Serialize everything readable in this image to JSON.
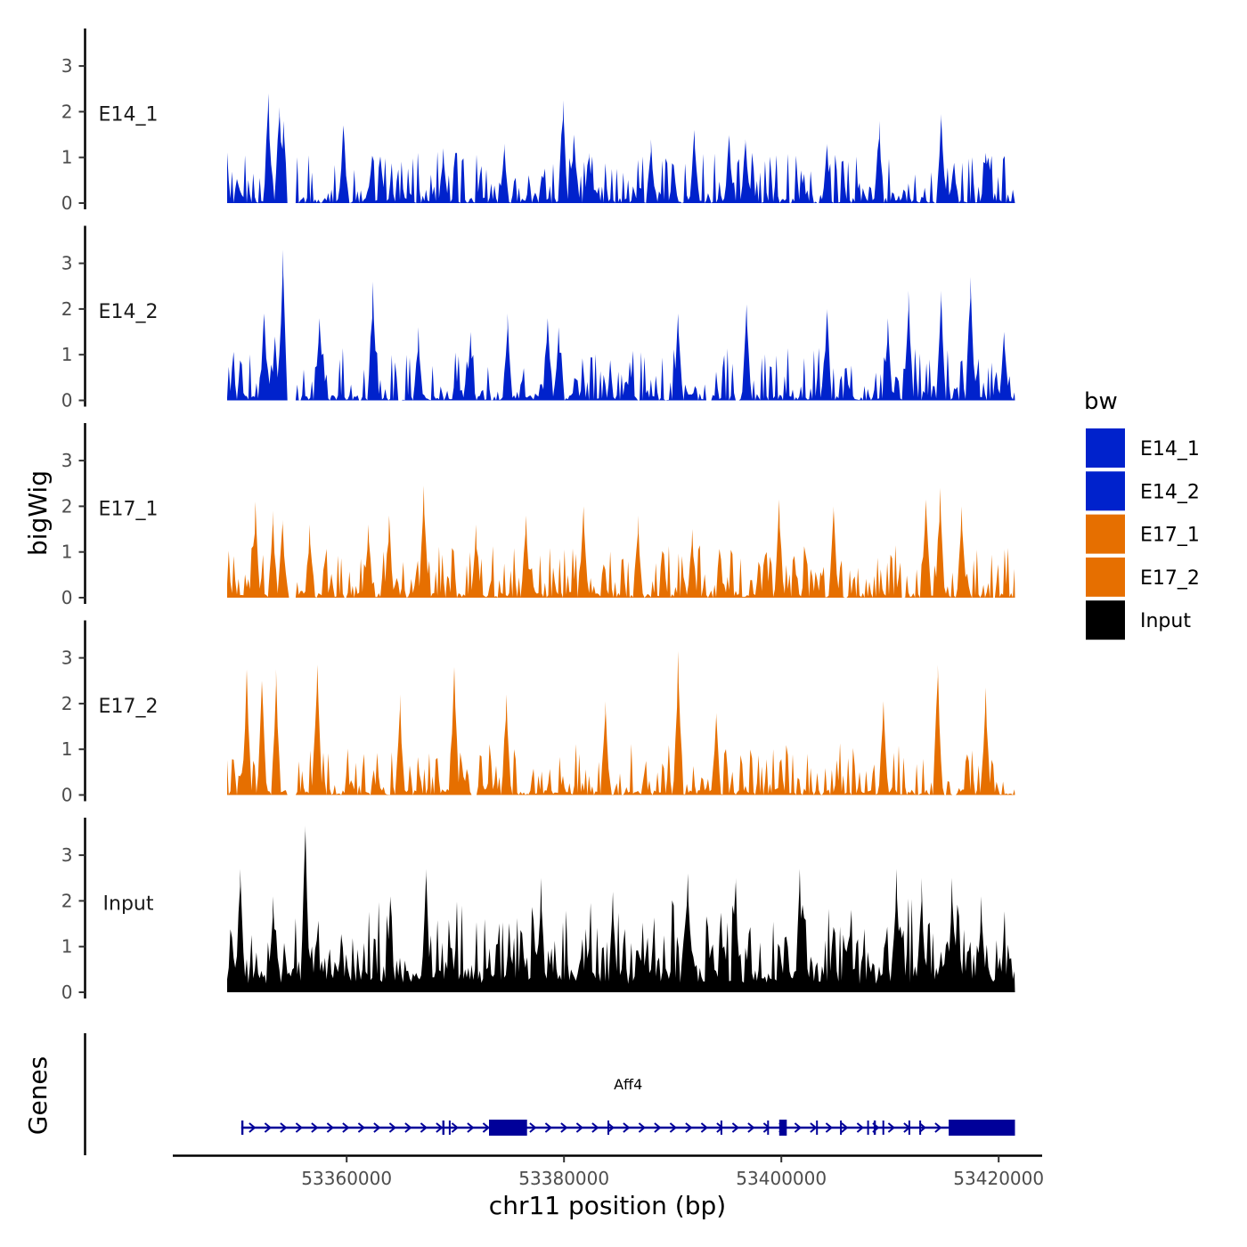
{
  "chart_data": {
    "type": "area",
    "xlabel": "chr11 position (bp)",
    "ylabel": "bigWig",
    "genes_label": "Genes",
    "chromosome": "chr11",
    "xlim": [
      53344000,
      53424000
    ],
    "data_range": [
      53349000,
      53421500
    ],
    "x_ticks": [
      {
        "value": 53360000,
        "label": "53360000"
      },
      {
        "value": 53380000,
        "label": "53380000"
      },
      {
        "value": 53400000,
        "label": "53400000"
      },
      {
        "value": 53420000,
        "label": "53420000"
      }
    ],
    "ylim": [
      0,
      3.8
    ],
    "y_ticks": [
      {
        "value": 0,
        "label": "0"
      },
      {
        "value": 1,
        "label": "1"
      },
      {
        "value": 2,
        "label": "2"
      },
      {
        "value": 3,
        "label": "3"
      }
    ],
    "tracks": [
      {
        "name": "E14_1",
        "color": "#0022cc",
        "max": 2.4,
        "peaks": [
          [
            53352800,
            2.4
          ],
          [
            53353800,
            2.1
          ],
          [
            53354200,
            1.8
          ],
          [
            53359700,
            1.7
          ],
          [
            53368900,
            1.2
          ],
          [
            53374500,
            1.3
          ],
          [
            53379900,
            2.25
          ],
          [
            53380900,
            1.5
          ],
          [
            53382300,
            1.1
          ],
          [
            53388000,
            1.4
          ],
          [
            53392000,
            1.6
          ],
          [
            53395200,
            1.5
          ],
          [
            53396700,
            1.4
          ],
          [
            53404200,
            1.3
          ],
          [
            53409000,
            1.8
          ],
          [
            53414700,
            1.95
          ],
          [
            53418800,
            1.1
          ]
        ],
        "gaps": [
          [
            53354500,
            53355300
          ],
          [
            53403200,
            53403500
          ]
        ]
      },
      {
        "name": "E14_2",
        "color": "#0022cc",
        "max": 3.3,
        "peaks": [
          [
            53352400,
            1.9
          ],
          [
            53353400,
            1.4
          ],
          [
            53354100,
            3.3
          ],
          [
            53357500,
            1.8
          ],
          [
            53362400,
            2.6
          ],
          [
            53366600,
            1.6
          ],
          [
            53371400,
            1.5
          ],
          [
            53374800,
            1.9
          ],
          [
            53378500,
            1.8
          ],
          [
            53379500,
            1.6
          ],
          [
            53390500,
            1.9
          ],
          [
            53396800,
            2.1
          ],
          [
            53404200,
            2.0
          ],
          [
            53409800,
            1.8
          ],
          [
            53411700,
            2.4
          ],
          [
            53414700,
            2.4
          ],
          [
            53417400,
            2.7
          ],
          [
            53420500,
            1.5
          ]
        ],
        "gaps": [
          [
            53354500,
            53355400
          ],
          [
            53393000,
            53393600
          ],
          [
            53395800,
            53396100
          ]
        ]
      },
      {
        "name": "E17_1",
        "color": "#e66f00",
        "max": 2.45,
        "peaks": [
          [
            53351600,
            2.1
          ],
          [
            53353200,
            1.9
          ],
          [
            53354100,
            1.7
          ],
          [
            53356600,
            1.6
          ],
          [
            53362000,
            1.6
          ],
          [
            53363900,
            1.8
          ],
          [
            53367100,
            2.45
          ],
          [
            53371900,
            1.6
          ],
          [
            53376500,
            1.8
          ],
          [
            53381800,
            2.0
          ],
          [
            53386800,
            1.8
          ],
          [
            53391800,
            1.5
          ],
          [
            53399800,
            2.15
          ],
          [
            53404800,
            2.0
          ],
          [
            53413300,
            2.15
          ],
          [
            53414600,
            2.4
          ],
          [
            53416600,
            2.0
          ]
        ],
        "gaps": [
          [
            53354700,
            53355400
          ],
          [
            53405800,
            53406100
          ],
          [
            53411000,
            53411300
          ]
        ]
      },
      {
        "name": "E17_2",
        "color": "#e66f00",
        "max": 3.15,
        "peaks": [
          [
            53350800,
            2.75
          ],
          [
            53352200,
            2.5
          ],
          [
            53353500,
            2.75
          ],
          [
            53357300,
            2.85
          ],
          [
            53364900,
            2.2
          ],
          [
            53369900,
            2.8
          ],
          [
            53374700,
            2.2
          ],
          [
            53383800,
            2.05
          ],
          [
            53390500,
            3.15
          ],
          [
            53394000,
            1.8
          ],
          [
            53409400,
            2.05
          ],
          [
            53414400,
            2.85
          ],
          [
            53418800,
            2.35
          ]
        ],
        "gaps": [
          [
            53354500,
            53355400
          ],
          [
            53371600,
            53372000
          ],
          [
            53415700,
            53416100
          ]
        ]
      },
      {
        "name": "Input",
        "color": "#000000",
        "max": 3.65,
        "peaks": [
          [
            53350200,
            2.7
          ],
          [
            53353200,
            2.1
          ],
          [
            53356200,
            3.65
          ],
          [
            53364000,
            2.1
          ],
          [
            53367300,
            2.7
          ],
          [
            53377900,
            2.5
          ],
          [
            53384500,
            2.2
          ],
          [
            53391400,
            2.6
          ],
          [
            53395800,
            2.5
          ],
          [
            53401700,
            2.7
          ],
          [
            53410600,
            2.7
          ],
          [
            53412900,
            2.5
          ],
          [
            53415700,
            2.5
          ],
          [
            53418400,
            2.1
          ]
        ],
        "gaps": []
      }
    ],
    "legend": {
      "title": "bw",
      "items": [
        {
          "label": "E14_1",
          "color": "#0022cc"
        },
        {
          "label": "E14_2",
          "color": "#0022cc"
        },
        {
          "label": "E17_1",
          "color": "#e66f00"
        },
        {
          "label": "E17_2",
          "color": "#e66f00"
        },
        {
          "label": "Input",
          "color": "#000000"
        }
      ]
    },
    "gene": {
      "name": "Aff4",
      "strand": "+",
      "color": "#000099",
      "start": 53350300,
      "end": 53421500,
      "exons": [
        [
          53350300,
          53350500
        ],
        [
          53368800,
          53369000
        ],
        [
          53369400,
          53369500
        ],
        [
          53373100,
          53376600
        ],
        [
          53384000,
          53384100
        ],
        [
          53394400,
          53394500
        ],
        [
          53398700,
          53398800
        ],
        [
          53399800,
          53400500
        ],
        [
          53403200,
          53403300
        ],
        [
          53405400,
          53405500
        ],
        [
          53407900,
          53408000
        ],
        [
          53408500,
          53408700
        ],
        [
          53409300,
          53409400
        ],
        [
          53411700,
          53411800
        ],
        [
          53412700,
          53412800
        ],
        [
          53415400,
          53421500
        ]
      ]
    }
  }
}
